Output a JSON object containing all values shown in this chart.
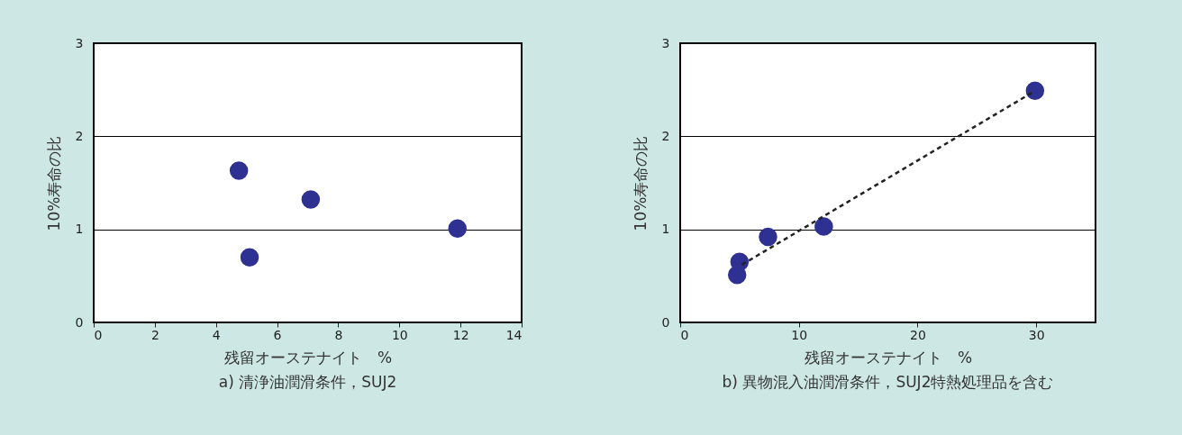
{
  "chart_data": [
    {
      "type": "scatter",
      "title": "a) 清浄油潤滑条件，SUJ2",
      "xlabel": "残留オーステナイト　%",
      "ylabel": "10%寿命の比",
      "xlim": [
        0,
        14
      ],
      "xticks": [
        0,
        2,
        4,
        6,
        8,
        10,
        12,
        14
      ],
      "ylim": [
        0,
        3
      ],
      "yticks": [
        0,
        1,
        2,
        3
      ],
      "grid": "y",
      "marker": "circle",
      "series": [
        {
          "color": "#2e3192",
          "x": [
            4.75,
            5.1,
            7.1,
            11.9
          ],
          "values": [
            1.63,
            0.7,
            1.32,
            1.01
          ]
        }
      ]
    },
    {
      "type": "scatter",
      "title": "b) 異物混入油潤滑条件，SUJ2特熱処理品を含む",
      "xlabel": "残留オーステナイト　%",
      "ylabel": "10%寿命の比",
      "xlim": [
        0,
        35
      ],
      "xticks": [
        0,
        10,
        20,
        30
      ],
      "ylim": [
        0,
        3
      ],
      "yticks": [
        0,
        1,
        2,
        3
      ],
      "grid": "y",
      "marker": "circle",
      "series": [
        {
          "color": "#2e3192",
          "x": [
            4.8,
            5.0,
            7.4,
            12.1,
            29.9
          ],
          "values": [
            0.51,
            0.65,
            0.92,
            1.03,
            2.49
          ]
        },
        {
          "type": "line",
          "color": "#222222",
          "line_style": "dashed",
          "marker": "none",
          "x": [
            5.2,
            29.8
          ],
          "values": [
            0.62,
            2.48
          ]
        }
      ]
    }
  ]
}
